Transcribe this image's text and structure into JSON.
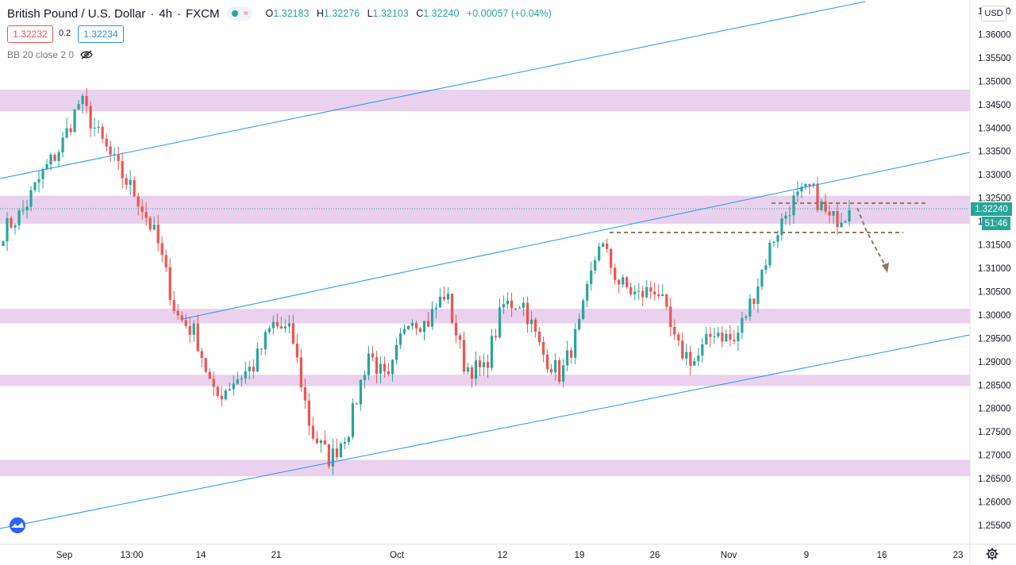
{
  "header": {
    "symbol_title": "British Pound / U.S. Dollar",
    "interval": "4h",
    "exchange": "FXCM",
    "ohlc": [
      {
        "k": "O",
        "v": "1.32183"
      },
      {
        "k": "H",
        "v": "1.32276"
      },
      {
        "k": "L",
        "v": "1.32103"
      },
      {
        "k": "C",
        "v": "1.32240"
      }
    ],
    "change": "+0.00057 (+0.04%)",
    "status_dot_color": "#26a69a",
    "status_wave_icon": "wave-icon"
  },
  "trade": {
    "bid": "1.32232",
    "spread": "0.2",
    "ask": "1.32234"
  },
  "indicator": {
    "label": "BB 20 close 2 0",
    "visibility_icon": "eye-off-icon"
  },
  "price_axis": {
    "currency": "USD",
    "labels": [
      "1.36500",
      "1.36000",
      "1.35500",
      "1.35000",
      "1.34500",
      "1.34000",
      "1.33500",
      "1.33000",
      "1.32500",
      "1.32000",
      "1.31500",
      "1.31000",
      "1.30500",
      "1.30000",
      "1.29500",
      "1.29000",
      "1.28500",
      "1.28000",
      "1.27500",
      "1.27000",
      "1.26500",
      "1.26000",
      "1.25500"
    ],
    "last_price": "1.32240",
    "countdown": "51:46"
  },
  "time_axis": {
    "labels": [
      "Sep",
      "13:00",
      "14",
      "21",
      "Oct",
      "12",
      "19",
      "26",
      "Nov",
      "9",
      "16",
      "23"
    ]
  },
  "colors": {
    "up": "#26a69a",
    "down": "#ef5350",
    "zone": "#e1bee7",
    "channel": "#2196f3",
    "projection": "#8d7a66"
  },
  "chart_data": {
    "type": "candlestick",
    "ylim": [
      1.2515,
      1.3675
    ],
    "x": [
      "Sep",
      "13:00",
      "14",
      "21",
      "Oct",
      "12",
      "19",
      "26",
      "Nov",
      "9",
      "16",
      "23"
    ],
    "zones": [
      {
        "from": 1.3436,
        "to": 1.3482
      },
      {
        "from": 1.3195,
        "to": 1.3255
      },
      {
        "from": 1.2982,
        "to": 1.3013
      },
      {
        "from": 1.2848,
        "to": 1.2872
      },
      {
        "from": 1.2655,
        "to": 1.269
      }
    ],
    "key_close_path": [
      1.318,
      1.322,
      1.33,
      1.336,
      1.346,
      1.338,
      1.331,
      1.325,
      1.316,
      1.3,
      1.296,
      1.282,
      1.286,
      1.289,
      1.298,
      1.296,
      1.275,
      1.269,
      1.276,
      1.292,
      1.285,
      1.3,
      1.298,
      1.305,
      1.289,
      1.288,
      1.302,
      1.303,
      1.292,
      1.287,
      1.298,
      1.316,
      1.307,
      1.304,
      1.306,
      1.293,
      1.29,
      1.297,
      1.294,
      1.304,
      1.316,
      1.324,
      1.327,
      1.32,
      1.3224
    ]
  },
  "drawings": {
    "horizontal_levels": [
      1.324,
      1.3169
    ],
    "projection_arrow": "down"
  }
}
